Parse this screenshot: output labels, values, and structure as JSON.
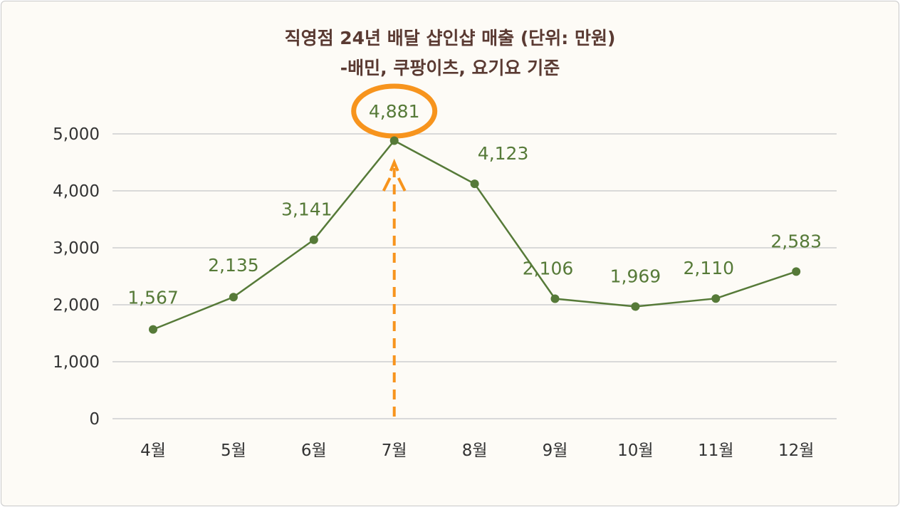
{
  "chart_data": {
    "type": "line",
    "title": "직영점 24년 배달 샵인샵 매출 (단위: 만원)",
    "subtitle": "-배민, 쿠팡이츠, 요기요 기준",
    "categories": [
      "4월",
      "5월",
      "6월",
      "7월",
      "8월",
      "9월",
      "10월",
      "11월",
      "12월"
    ],
    "values": [
      1567,
      2135,
      3141,
      4881,
      4123,
      2106,
      1969,
      2110,
      2583
    ],
    "data_labels": [
      "1,567",
      "2,135",
      "3,141",
      "4,881",
      "4,123",
      "2,106",
      "1,969",
      "2,110",
      "2,583"
    ],
    "yticks": [
      "0",
      "1,000",
      "2,000",
      "3,000",
      "4,000",
      "5,000"
    ],
    "ytick_values": [
      0,
      1000,
      2000,
      3000,
      4000,
      5000
    ],
    "ylim": [
      0,
      5000
    ],
    "grid": true,
    "highlight": {
      "category": "7월",
      "style": "orange ellipse around label with dashed up arrow"
    },
    "colors": {
      "line": "#567a38",
      "title": "#5a3a32",
      "highlight": "#f7941d",
      "grid": "#d9d9d9",
      "background": "#fdfbf6"
    }
  }
}
